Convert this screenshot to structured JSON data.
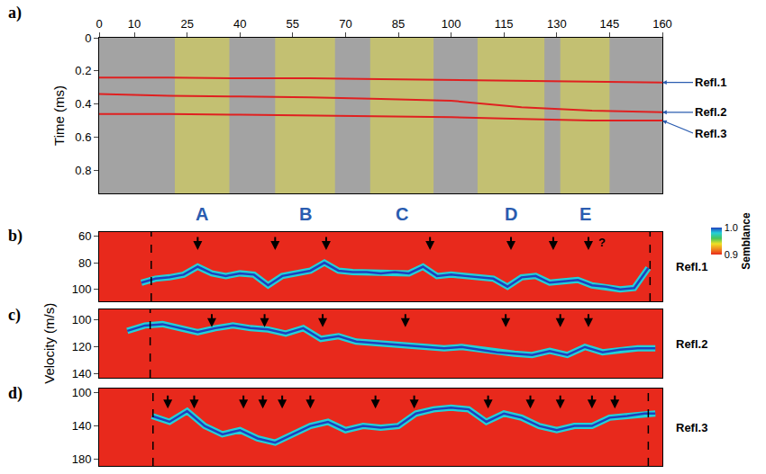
{
  "chart_data": [
    {
      "type": "section",
      "panel": "a)",
      "ylabel": "Time (ms)",
      "xlim": [
        0,
        160
      ],
      "xticks": [
        0,
        10,
        25,
        40,
        55,
        70,
        85,
        100,
        115,
        130,
        145,
        160
      ],
      "ylim": [
        0.94,
        0
      ],
      "yticks": [
        0,
        0.2,
        0.4,
        0.6,
        0.8
      ],
      "zones": [
        {
          "label": "A",
          "x0": 21.5,
          "x1": 37
        },
        {
          "label": "B",
          "x0": 50,
          "x1": 67
        },
        {
          "label": "C",
          "x0": 77,
          "x1": 95
        },
        {
          "label": "D",
          "x0": 107.5,
          "x1": 126.5
        },
        {
          "label": "E",
          "x0": 131,
          "x1": 145
        }
      ],
      "x": [
        0,
        20,
        40,
        60,
        80,
        100,
        120,
        140,
        160
      ],
      "series": [
        {
          "name": "Refl.1",
          "color": "#e02020",
          "values": [
            0.24,
            0.24,
            0.245,
            0.245,
            0.25,
            0.255,
            0.26,
            0.265,
            0.27
          ]
        },
        {
          "name": "Refl.2",
          "color": "#e02020",
          "values": [
            0.34,
            0.35,
            0.355,
            0.36,
            0.37,
            0.38,
            0.42,
            0.44,
            0.45
          ]
        },
        {
          "name": "Refl.3",
          "color": "#e02020",
          "values": [
            0.46,
            0.46,
            0.465,
            0.47,
            0.475,
            0.48,
            0.49,
            0.5,
            0.5
          ]
        }
      ]
    },
    {
      "type": "line",
      "panel": "b)",
      "label": "Refl.1",
      "color": "#1f3fbf",
      "tick_labels": "y",
      "xlim": [
        0,
        160
      ],
      "ylim": [
        109,
        57
      ],
      "yticks": [
        60,
        80,
        100
      ],
      "x": [
        12,
        16,
        20,
        24,
        28,
        32,
        36,
        40,
        44,
        48,
        52,
        56,
        60,
        64,
        68,
        72,
        76,
        80,
        84,
        88,
        92,
        96,
        100,
        104,
        108,
        112,
        116,
        120,
        124,
        128,
        132,
        136,
        140,
        144,
        148,
        152,
        156
      ],
      "values": [
        95,
        92,
        91,
        89,
        83,
        88,
        90,
        88,
        89,
        97,
        90,
        88,
        86,
        80,
        86,
        87,
        87,
        88,
        87,
        88,
        83,
        90,
        89,
        90,
        91,
        92,
        98,
        91,
        90,
        95,
        94,
        93,
        97,
        98,
        100,
        99,
        84
      ],
      "arrows": [
        28,
        50,
        64.5,
        94,
        117,
        129,
        {
          "value": 139,
          "label": "?"
        }
      ],
      "dashed": [
        14.8,
        156.5
      ],
      "colorbar": {
        "title": "Semblance",
        "range": [
          0.9,
          1.0
        ],
        "ticks": [
          {
            "value": 1,
            "label": "1.0"
          },
          0.9
        ],
        "colors": [
          "#e8291c",
          "#f08a1e",
          "#f0e024",
          "#46c45a",
          "#22d0d8",
          "#1f3fbf"
        ]
      }
    },
    {
      "type": "line",
      "panel": "c)",
      "label": "Refl.2",
      "color": "#1f3fbf",
      "tick_labels": "y",
      "ylabel": "Velocity (m/s)",
      "xlim": [
        0,
        160
      ],
      "ylim": [
        143,
        92
      ],
      "yticks": [
        100,
        120,
        140
      ],
      "x": [
        8,
        13,
        18,
        23,
        28,
        33,
        38,
        43,
        48,
        53,
        58,
        63,
        68,
        73,
        78,
        83,
        88,
        93,
        98,
        103,
        108,
        113,
        118,
        123,
        128,
        133,
        138,
        143,
        148,
        153,
        158
      ],
      "values": [
        108,
        104,
        103,
        106,
        109,
        106,
        104,
        106,
        107,
        110,
        106,
        114,
        112,
        116,
        117,
        118,
        119,
        120,
        121,
        120,
        122,
        124,
        125,
        126,
        123,
        126,
        120,
        124,
        122,
        121,
        121
      ],
      "arrows": [
        32,
        47,
        63.5,
        87,
        115.5,
        131,
        139
      ],
      "dashed": [
        14.5
      ]
    },
    {
      "type": "line",
      "panel": "d)",
      "label": "Refl.3",
      "color": "#1f3fbf",
      "tick_labels": "y",
      "xlim": [
        0,
        160
      ],
      "ylim": [
        188,
        95
      ],
      "yticks": [
        100,
        140,
        180
      ],
      "x": [
        15,
        20,
        25,
        30,
        35,
        40,
        45,
        50,
        55,
        60,
        65,
        70,
        75,
        80,
        85,
        90,
        95,
        100,
        105,
        110,
        115,
        120,
        125,
        130,
        135,
        140,
        145,
        150,
        155,
        158
      ],
      "values": [
        128,
        135,
        122,
        140,
        150,
        145,
        155,
        160,
        150,
        140,
        135,
        145,
        140,
        142,
        140,
        125,
        120,
        118,
        120,
        135,
        125,
        130,
        140,
        145,
        140,
        140,
        130,
        128,
        125,
        125
      ],
      "arrows": [
        19.5,
        27,
        41,
        46.5,
        52,
        60,
        78.5,
        89.5,
        110.5,
        122.5,
        131,
        140,
        146.5
      ],
      "dashed": [
        15.3,
        156
      ]
    }
  ]
}
